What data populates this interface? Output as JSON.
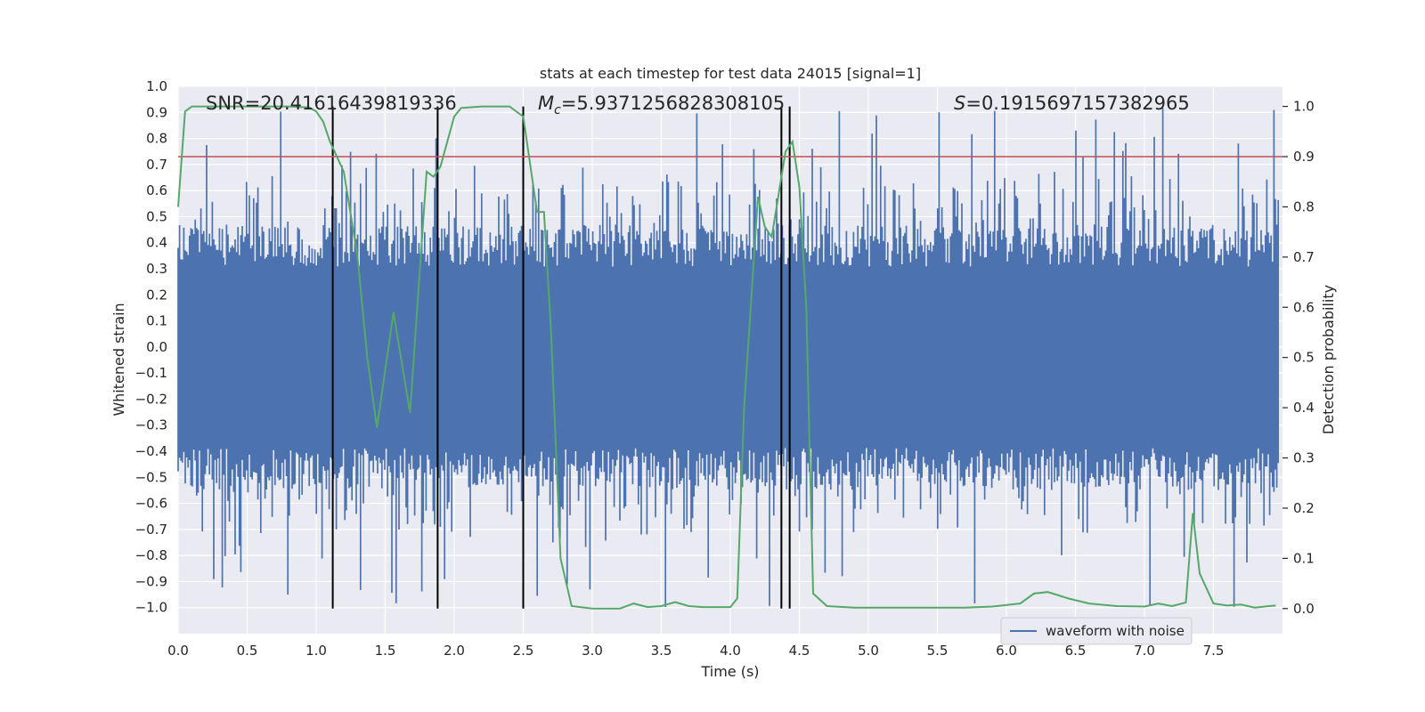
{
  "chart_data": {
    "type": "line",
    "title": "stats at each timestep for test data 24015 [signal=1]",
    "xlabel": "Time (s)",
    "ylabel": "Whitened strain",
    "y2label": "Detection probability",
    "xlim": [
      0.0,
      8.0
    ],
    "ylim": [
      -1.1,
      1.0
    ],
    "y2lim": [
      -0.05,
      1.04
    ],
    "x_ticks": [
      "0.0",
      "0.5",
      "1.0",
      "1.5",
      "2.0",
      "2.5",
      "3.0",
      "3.5",
      "4.0",
      "4.5",
      "5.0",
      "5.5",
      "6.0",
      "6.5",
      "7.0",
      "7.5"
    ],
    "y_ticks": [
      "1.0",
      "0.9",
      "0.8",
      "0.7",
      "0.6",
      "0.5",
      "0.4",
      "0.3",
      "0.2",
      "0.1",
      "0.0",
      "−0.1",
      "−0.2",
      "−0.3",
      "−0.4",
      "−0.5",
      "−0.6",
      "−0.7",
      "−0.8",
      "−0.9",
      "−1.0"
    ],
    "y2_ticks": [
      "1.0",
      "0.9",
      "0.8",
      "0.7",
      "0.6",
      "0.5",
      "0.4",
      "0.3",
      "0.2",
      "0.1",
      "0.0"
    ],
    "grid": true,
    "legend_position": "bottom-right",
    "annotations": {
      "snr": "SNR=20.41616439819336",
      "mc_symbol": "M",
      "mc_sub": "c",
      "mc_value": "=5.9371256828308105",
      "s_symbol": "S",
      "s_value": "=0.1915697157382965"
    },
    "threshold": {
      "value": 0.9,
      "axis": "y2",
      "color": "#c44e52"
    },
    "vertical_lines": [
      1.12,
      1.88,
      2.5,
      4.37,
      4.43
    ],
    "series": [
      {
        "name": "waveform with noise",
        "axis": "y1",
        "kind": "noise",
        "color": "#4c72b0",
        "dense_band": [
          -0.42,
          0.34
        ],
        "envelope_peak_positive": 0.92,
        "envelope_peak_negative": -1.0
      },
      {
        "axis": "y2",
        "kind": "line",
        "color": "#55a868",
        "x": [
          0.0,
          0.05,
          0.1,
          0.2,
          0.4,
          0.6,
          0.8,
          0.95,
          1.0,
          1.05,
          1.1,
          1.2,
          1.3,
          1.37,
          1.44,
          1.56,
          1.68,
          1.8,
          1.85,
          1.9,
          2.0,
          2.05,
          2.2,
          2.4,
          2.5,
          2.6,
          2.65,
          2.7,
          2.77,
          2.85,
          3.0,
          3.2,
          3.3,
          3.4,
          3.5,
          3.6,
          3.7,
          3.8,
          3.9,
          4.0,
          4.05,
          4.1,
          4.2,
          4.25,
          4.3,
          4.4,
          4.45,
          4.5,
          4.55,
          4.6,
          4.7,
          4.9,
          5.1,
          5.3,
          5.5,
          5.7,
          5.9,
          6.1,
          6.2,
          6.3,
          6.45,
          6.6,
          6.8,
          7.0,
          7.1,
          7.2,
          7.3,
          7.35,
          7.4,
          7.5,
          7.6,
          7.7,
          7.8,
          7.9,
          7.95
        ],
        "y": [
          0.8,
          0.99,
          1.0,
          1.0,
          1.0,
          1.0,
          1.0,
          0.998,
          0.99,
          0.97,
          0.93,
          0.87,
          0.7,
          0.5,
          0.36,
          0.59,
          0.39,
          0.87,
          0.86,
          0.88,
          0.98,
          0.997,
          1.0,
          1.0,
          0.98,
          0.79,
          0.79,
          0.56,
          0.1,
          0.005,
          0.0,
          0.0,
          0.01,
          0.003,
          0.005,
          0.013,
          0.005,
          0.003,
          0.003,
          0.003,
          0.02,
          0.4,
          0.82,
          0.76,
          0.74,
          0.91,
          0.93,
          0.84,
          0.6,
          0.03,
          0.005,
          0.002,
          0.002,
          0.002,
          0.002,
          0.002,
          0.004,
          0.01,
          0.03,
          0.033,
          0.02,
          0.01,
          0.005,
          0.004,
          0.01,
          0.005,
          0.012,
          0.19,
          0.07,
          0.01,
          0.006,
          0.008,
          0.002,
          0.005,
          0.006
        ]
      }
    ]
  }
}
